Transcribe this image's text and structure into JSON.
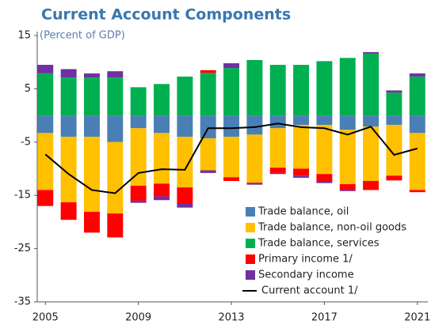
{
  "chart_data": {
    "type": "stacked-bar-line",
    "title": "Current Account Components",
    "subtitle": "(Percent of GDP)",
    "x": [
      2005,
      2006,
      2007,
      2008,
      2009,
      2010,
      2011,
      2012,
      2013,
      2014,
      2015,
      2016,
      2017,
      2018,
      2019,
      2020,
      2021
    ],
    "xlim": [
      2004.65,
      2021.45
    ],
    "xticks": [
      2005,
      2009,
      2013,
      2017,
      2021
    ],
    "ylim": [
      -35,
      15
    ],
    "yticks": [
      -35,
      -25,
      -15,
      -5,
      5,
      15
    ],
    "series": [
      {
        "name": "Trade balance, oil",
        "color": "#4a7fb5",
        "kind": "bar",
        "values": [
          -3.3,
          -4,
          -4,
          -5,
          -2.4,
          -3.3,
          -4,
          -4.3,
          -4,
          -3.6,
          -2.4,
          -1.8,
          -1.8,
          -2.7,
          -2.1,
          -1.8,
          -3.3
        ]
      },
      {
        "name": "Trade balance, non-oil goods",
        "color": "#ffc000",
        "kind": "bar",
        "values": [
          -10.7,
          -12.3,
          -14.1,
          -13.4,
          -10.8,
          -9.5,
          -9.5,
          -6,
          -7.6,
          -9,
          -7.4,
          -8.2,
          -9.2,
          -10.2,
          -10.2,
          -9.5,
          -10.7
        ]
      },
      {
        "name": "Trade balance, services",
        "color": "#00b050",
        "kind": "bar",
        "values": [
          7.9,
          7.1,
          7.1,
          7.1,
          5.3,
          5.9,
          7.3,
          8,
          8.9,
          10.4,
          9.5,
          9.5,
          10.2,
          10.8,
          11.6,
          4.3,
          7.3
        ]
      },
      {
        "name": "Primary income 1/",
        "color": "#ff0000",
        "kind": "bar",
        "values": [
          -3,
          -3.3,
          -3.9,
          -4.5,
          -2.8,
          -2.4,
          -3.1,
          0.5,
          -0.7,
          -0.1,
          -1,
          -1.3,
          -1.3,
          -1.1,
          -1.7,
          -0.9,
          -0.4
        ]
      },
      {
        "name": "Secondary income",
        "color": "#7030a0",
        "kind": "bar",
        "values": [
          1.6,
          1.6,
          0.8,
          1.2,
          -0.4,
          -0.7,
          -0.7,
          -0.5,
          0.9,
          -0.3,
          -0.2,
          -0.4,
          -0.4,
          -0.2,
          0.3,
          0.4,
          0.6
        ]
      },
      {
        "name": "Current account 1/",
        "color": "#000000",
        "kind": "line",
        "values": [
          -7.3,
          -11,
          -14,
          -14.6,
          -10.8,
          -10.1,
          -10.2,
          -2.4,
          -2.4,
          -2.2,
          -1.5,
          -2.2,
          -2.4,
          -3.6,
          -2.1,
          -7.4,
          -6.2
        ]
      }
    ]
  }
}
